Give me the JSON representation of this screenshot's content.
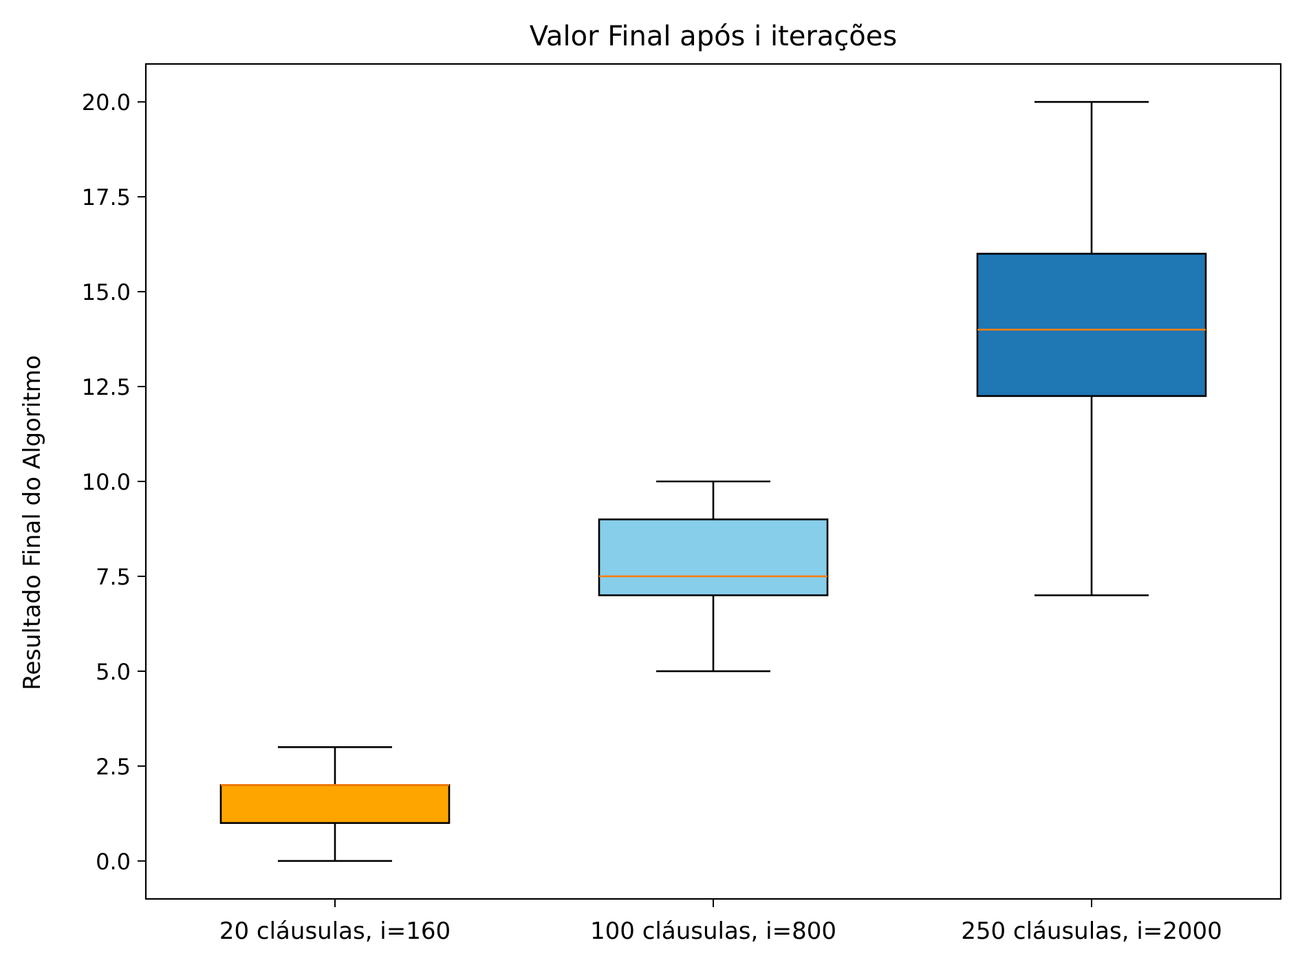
{
  "chart_data": {
    "type": "box",
    "title": "Valor Final após i iterações",
    "xlabel": "",
    "ylabel": "Resultado Final do Algoritmo",
    "ylim": [
      -1,
      21
    ],
    "yticks": [
      0.0,
      2.5,
      5.0,
      7.5,
      10.0,
      12.5,
      15.0,
      17.5,
      20.0
    ],
    "ytick_labels": [
      "0.0",
      "2.5",
      "5.0",
      "7.5",
      "10.0",
      "12.5",
      "15.0",
      "17.5",
      "20.0"
    ],
    "grid": false,
    "median_color": "#ff7f0e",
    "categories": [
      "20 cláusulas, i=160",
      "100 cláusulas, i=800",
      "250 cláusulas, i=2000"
    ],
    "boxes": [
      {
        "whisker_low": 0,
        "q1": 1,
        "median": 2,
        "q3": 2,
        "whisker_high": 3,
        "color": "#ffa500"
      },
      {
        "whisker_low": 5,
        "q1": 7,
        "median": 7.5,
        "q3": 9,
        "whisker_high": 10,
        "color": "#87ceeb"
      },
      {
        "whisker_low": 7,
        "q1": 12.25,
        "median": 14,
        "q3": 16,
        "whisker_high": 20,
        "color": "#1f77b4"
      }
    ]
  }
}
